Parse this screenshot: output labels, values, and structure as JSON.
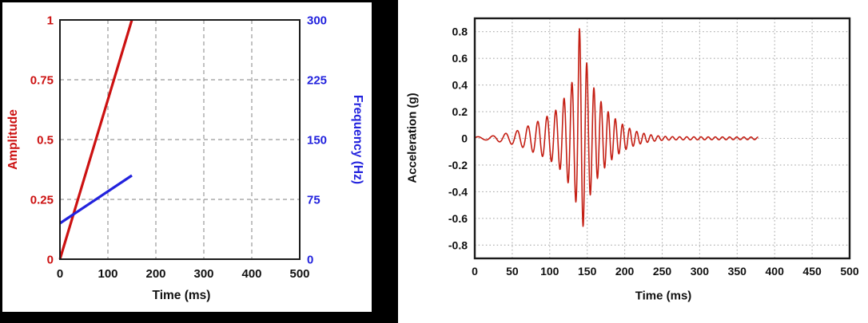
{
  "figure": {
    "background": "#ffffff",
    "left_frame_color": "#000000"
  },
  "styles": {
    "frame_color": "#1a1a1a",
    "tick_text_color": "#111111",
    "grid_color_left": "#999999",
    "grid_color_right": "#ababab"
  },
  "chart_data": [
    {
      "id": "sweep-parameters",
      "type": "line",
      "xlabel": "Time (ms)",
      "x_range": [
        0,
        500
      ],
      "x_ticks": [
        0,
        100,
        200,
        300,
        400,
        500
      ],
      "grid": "dashed",
      "legend": "none",
      "y_left": {
        "label": "Amplitude",
        "color": "#cc1111",
        "range": [
          0,
          1
        ],
        "ticks": [
          0,
          0.25,
          0.5,
          0.75,
          1
        ]
      },
      "y_right": {
        "label": "Frequency (Hz)",
        "color": "#2222dd",
        "range": [
          0,
          300
        ],
        "ticks": [
          0,
          75,
          150,
          225,
          300
        ]
      },
      "series": [
        {
          "name": "Amplitude",
          "axis": "left",
          "color": "#cc1111",
          "points": [
            [
              0,
              0
            ],
            [
              150,
              1
            ]
          ]
        },
        {
          "name": "Frequency",
          "axis": "right",
          "color": "#2222dd",
          "points": [
            [
              0,
              45
            ],
            [
              150,
              105
            ]
          ]
        }
      ]
    },
    {
      "id": "acceleration-time-history",
      "type": "line",
      "xlabel": "Time (ms)",
      "ylabel": "Acceleration (g)",
      "x_range": [
        0,
        500
      ],
      "x_ticks": [
        0,
        50,
        100,
        150,
        200,
        250,
        300,
        350,
        400,
        450,
        500
      ],
      "y_range": [
        -0.9,
        0.9
      ],
      "y_ticks": [
        0.8,
        0.6,
        0.4,
        0.2,
        0,
        -0.2,
        -0.4,
        -0.6,
        -0.8
      ],
      "grid": "dotted",
      "color": "#c41f14",
      "signal": {
        "kind": "amplitude-modulated linear chirp",
        "t_start_ms": 0,
        "t_end_ms": 378,
        "sample_ms": 0.4,
        "freq_sweep_hz": {
          "f0": 45,
          "f1": 105,
          "t0_ms": 0,
          "t1_ms": 150
        },
        "phase_offset_cycles": 0.03,
        "negative_scale": 0.93,
        "peak_g": 0.82,
        "trough_g": -0.75,
        "envelope_points_t_ms_amp_g": [
          [
            0,
            0.012
          ],
          [
            15,
            0.013
          ],
          [
            25,
            0.02
          ],
          [
            35,
            0.03
          ],
          [
            45,
            0.042
          ],
          [
            55,
            0.055
          ],
          [
            65,
            0.075
          ],
          [
            75,
            0.105
          ],
          [
            85,
            0.13
          ],
          [
            95,
            0.16
          ],
          [
            103,
            0.19
          ],
          [
            110,
            0.22
          ],
          [
            116,
            0.27
          ],
          [
            122,
            0.33
          ],
          [
            128,
            0.4
          ],
          [
            133,
            0.46
          ],
          [
            136,
            0.55
          ],
          [
            139,
            0.83
          ],
          [
            142,
            0.8
          ],
          [
            146,
            0.66
          ],
          [
            150,
            0.55
          ],
          [
            154,
            0.46
          ],
          [
            158,
            0.39
          ],
          [
            163,
            0.33
          ],
          [
            168,
            0.28
          ],
          [
            173,
            0.24
          ],
          [
            178,
            0.2
          ],
          [
            184,
            0.165
          ],
          [
            190,
            0.135
          ],
          [
            196,
            0.11
          ],
          [
            203,
            0.085
          ],
          [
            210,
            0.066
          ],
          [
            217,
            0.05
          ],
          [
            224,
            0.04
          ],
          [
            232,
            0.03
          ],
          [
            240,
            0.022
          ],
          [
            252,
            0.015
          ],
          [
            268,
            0.012
          ],
          [
            378,
            0.01
          ]
        ]
      }
    }
  ]
}
